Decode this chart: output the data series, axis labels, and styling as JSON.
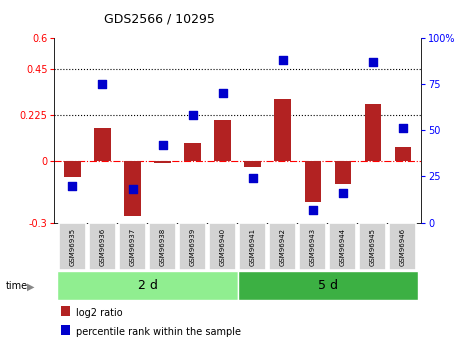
{
  "title": "GDS2566 / 10295",
  "samples": [
    "GSM96935",
    "GSM96936",
    "GSM96937",
    "GSM96938",
    "GSM96939",
    "GSM96940",
    "GSM96941",
    "GSM96942",
    "GSM96943",
    "GSM96944",
    "GSM96945",
    "GSM96946"
  ],
  "log2_ratio": [
    -0.08,
    0.16,
    -0.27,
    -0.01,
    0.09,
    0.2,
    -0.03,
    0.3,
    -0.2,
    -0.11,
    0.28,
    0.07
  ],
  "percentile_rank": [
    20,
    75,
    18,
    42,
    58,
    70,
    24,
    88,
    7,
    16,
    87,
    51
  ],
  "groups": [
    {
      "label": "2 d",
      "start": 0,
      "end": 6,
      "color": "#90EE90"
    },
    {
      "label": "5 d",
      "start": 6,
      "end": 12,
      "color": "#3CB043"
    }
  ],
  "bar_color": "#B22222",
  "dot_color": "#0000CC",
  "ylim_left": [
    -0.3,
    0.6
  ],
  "ylim_right": [
    0,
    100
  ],
  "yticks_left": [
    -0.3,
    0.0,
    0.225,
    0.45,
    0.6
  ],
  "yticks_right": [
    0,
    25,
    50,
    75,
    100
  ],
  "hlines": [
    0.45,
    0.225
  ],
  "background_color": "#ffffff",
  "bar_width": 0.55,
  "dot_size": 28
}
